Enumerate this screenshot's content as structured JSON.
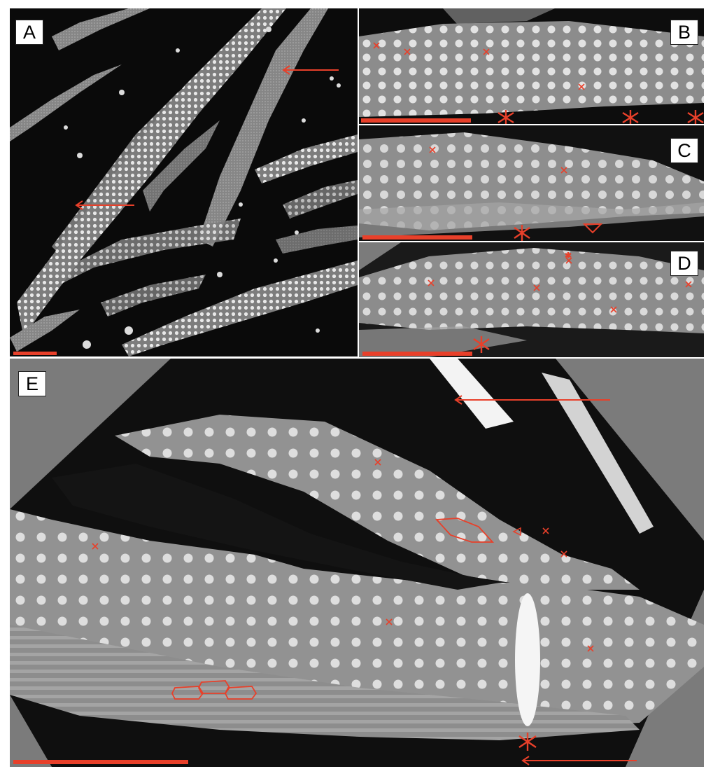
{
  "figure": {
    "panels": [
      {
        "id": "A",
        "label": "A"
      },
      {
        "id": "B",
        "label": "B"
      },
      {
        "id": "C",
        "label": "C"
      },
      {
        "id": "D",
        "label": "D"
      },
      {
        "id": "E",
        "label": "E"
      }
    ],
    "colors": {
      "annotation": "#e8402a",
      "background": "#0b0b0b",
      "surface": "#8a8a8a",
      "canvas_gray": "#7b7b7b",
      "figure_bg": "#ffffff"
    }
  }
}
